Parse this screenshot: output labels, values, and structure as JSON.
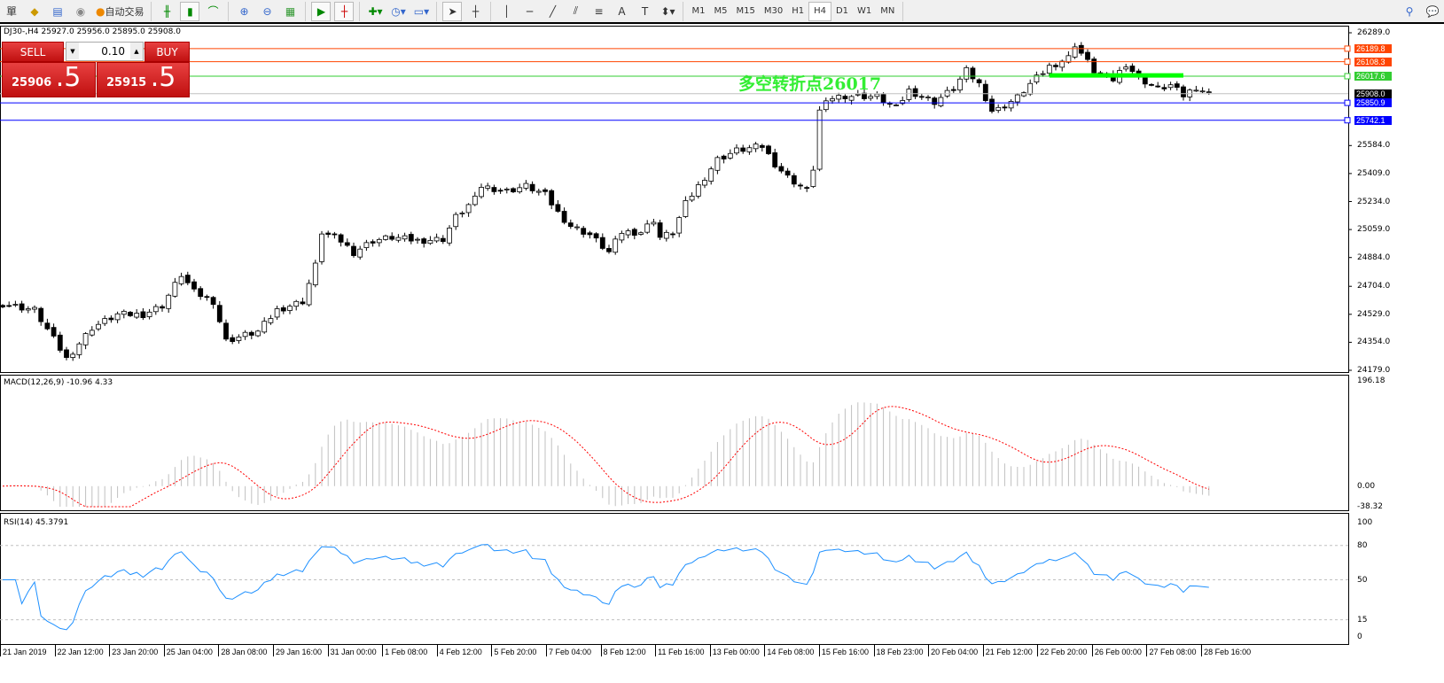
{
  "toolbar": {
    "menu_fragment": "單",
    "auto_trade": "自动交易",
    "timeframes": [
      "M1",
      "M5",
      "M15",
      "M30",
      "H1",
      "H4",
      "D1",
      "W1",
      "MN"
    ],
    "active_timeframe": "H4",
    "icons": [
      "gold-icon",
      "server-icon",
      "signal-icon",
      "bar-chart-icon",
      "candle-chart-icon",
      "line-chart-icon",
      "zoom-in-icon",
      "zoom-out-icon",
      "tile-icon",
      "auto-scroll-icon",
      "chart-shift-icon",
      "indicators-icon",
      "periods-icon",
      "templates-icon",
      "cursor-icon",
      "crosshair-icon",
      "vertical-line-icon",
      "horizontal-line-icon",
      "trendline-icon",
      "channel-icon",
      "fibonacci-icon",
      "text-icon",
      "label-icon",
      "arrows-icon",
      "search-icon",
      "chat-icon"
    ]
  },
  "symbol_info": "DJ30-,H4  25927.0 25956.0 25895.0 25908.0",
  "trade_panel": {
    "sell_label": "SELL",
    "buy_label": "BUY",
    "lot": "0.10",
    "sell_price_main": "25906",
    "sell_price_frac": ".5",
    "buy_price_main": "25915",
    "buy_price_frac": ".5"
  },
  "annotation": "多空转折点26017",
  "price_axis": {
    "labels": [
      "26289.0",
      "25584.0",
      "25409.0",
      "25234.0",
      "25059.0",
      "24884.0",
      "24704.0",
      "24529.0",
      "24354.0",
      "24179.0"
    ],
    "range": [
      24179,
      26289
    ]
  },
  "levels": [
    {
      "label": "26189.8",
      "price": 26189.8,
      "color": "#ff4500"
    },
    {
      "label": "26108.3",
      "price": 26108.3,
      "color": "#ff4500"
    },
    {
      "label": "26017.6",
      "price": 26017.6,
      "color": "#32cd32"
    },
    {
      "label": "25908.0",
      "price": 25908.0,
      "color": "#000000",
      "line_color": "#c0c0c0"
    },
    {
      "label": "25850.9",
      "price": 25850.9,
      "color": "#0000ff"
    },
    {
      "label": "25742.1",
      "price": 25742.1,
      "color": "#0000ff"
    }
  ],
  "trendline": {
    "price": 26017,
    "from_bar": 164,
    "to_bar": 185,
    "color": "#00ff00"
  },
  "macd": {
    "label": "MACD(12,26,9) -10.96 4.33",
    "axis": [
      "196.18",
      "0.00",
      "-38.32"
    ],
    "range": [
      -38.32,
      196.18
    ],
    "hist_color": "#c0c0c0",
    "signal_color": "#ff0000"
  },
  "rsi": {
    "label": "RSI(14) 45.3791",
    "axis": [
      "100",
      "80",
      "50",
      "15",
      "0"
    ],
    "levels": [
      80,
      50,
      15
    ],
    "color": "#1e90ff"
  },
  "time_axis": [
    "21 Jan 2019",
    "22 Jan 12:00",
    "23 Jan 20:00",
    "25 Jan 04:00",
    "28 Jan 08:00",
    "29 Jan 16:00",
    "31 Jan 00:00",
    "1 Feb 08:00",
    "4 Feb 12:00",
    "5 Feb 20:00",
    "7 Feb 04:00",
    "8 Feb 12:00",
    "11 Feb 16:00",
    "13 Feb 00:00",
    "14 Feb 08:00",
    "15 Feb 16:00",
    "18 Feb 23:00",
    "20 Feb 04:00",
    "21 Feb 12:00",
    "22 Feb 20:00",
    "26 Feb 00:00",
    "27 Feb 08:00",
    "28 Feb 16:00"
  ],
  "chart_data": {
    "type": "candlestick",
    "bars": 190,
    "close_keyframes": [
      [
        0,
        24595
      ],
      [
        5,
        24556
      ],
      [
        10,
        24251
      ],
      [
        14,
        24445
      ],
      [
        18,
        24528
      ],
      [
        22,
        24528
      ],
      [
        25,
        24584
      ],
      [
        28,
        24777
      ],
      [
        30,
        24667
      ],
      [
        33,
        24611
      ],
      [
        35,
        24362
      ],
      [
        38,
        24400
      ],
      [
        40,
        24420
      ],
      [
        43,
        24556
      ],
      [
        47,
        24611
      ],
      [
        49,
        24833
      ],
      [
        50,
        25043
      ],
      [
        53,
        24988
      ],
      [
        55,
        24916
      ],
      [
        58,
        24990
      ],
      [
        61,
        25010
      ],
      [
        65,
        24990
      ],
      [
        69,
        25000
      ],
      [
        71,
        25137
      ],
      [
        74,
        25248
      ],
      [
        75,
        25331
      ],
      [
        79,
        25300
      ],
      [
        82,
        25331
      ],
      [
        85,
        25276
      ],
      [
        87,
        25165
      ],
      [
        89,
        25082
      ],
      [
        92,
        25027
      ],
      [
        95,
        24916
      ],
      [
        97,
        25043
      ],
      [
        100,
        25043
      ],
      [
        102,
        25120
      ],
      [
        103,
        25010
      ],
      [
        105,
        25040
      ],
      [
        107,
        25220
      ],
      [
        110,
        25387
      ],
      [
        112,
        25497
      ],
      [
        115,
        25553
      ],
      [
        119,
        25580
      ],
      [
        121,
        25470
      ],
      [
        123,
        25387
      ],
      [
        126,
        25303
      ],
      [
        127,
        25442
      ],
      [
        128,
        25802
      ],
      [
        130,
        25885
      ],
      [
        132,
        25896
      ],
      [
        137,
        25890
      ],
      [
        140,
        25818
      ],
      [
        142,
        25929
      ],
      [
        146,
        25857
      ],
      [
        149,
        25940
      ],
      [
        151,
        26051
      ],
      [
        153,
        25968
      ],
      [
        155,
        25802
      ],
      [
        156,
        25810
      ],
      [
        159,
        25885
      ],
      [
        161,
        25968
      ],
      [
        164,
        26078
      ],
      [
        167,
        26134
      ],
      [
        168,
        26217
      ],
      [
        169,
        26161
      ],
      [
        171,
        26051
      ],
      [
        174,
        25996
      ],
      [
        176,
        26095
      ],
      [
        178,
        26007
      ],
      [
        181,
        25940
      ],
      [
        183,
        25960
      ],
      [
        185,
        25896
      ],
      [
        187,
        25950
      ],
      [
        189,
        25908
      ]
    ]
  }
}
